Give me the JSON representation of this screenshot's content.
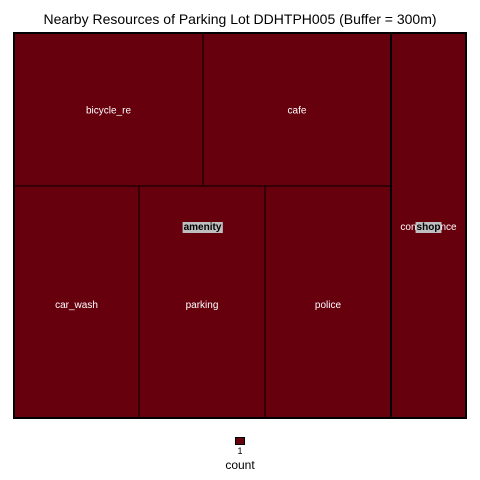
{
  "chart_data": {
    "type": "treemap",
    "title": "Nearby Resources of Parking Lot DDHTPH005 (Buffer = 300m)",
    "groups": [
      {
        "name": "amenity",
        "items": [
          {
            "label": "bicycle_re",
            "value": 1
          },
          {
            "label": "cafe",
            "value": 1
          },
          {
            "label": "car_wash",
            "value": 1
          },
          {
            "label": "parking",
            "value": 1
          },
          {
            "label": "police",
            "value": 1
          }
        ]
      },
      {
        "name": "shop",
        "items": [
          {
            "label": "convenience",
            "value": 1
          }
        ]
      }
    ],
    "legend": {
      "title": "count",
      "values": [
        1
      ],
      "colors": [
        "#67000d"
      ],
      "position": "bottom"
    }
  },
  "colors": {
    "fill": "#67000d",
    "border": "#000000",
    "label": "#ffffff",
    "group_label_bg": "#bfbfbf"
  }
}
